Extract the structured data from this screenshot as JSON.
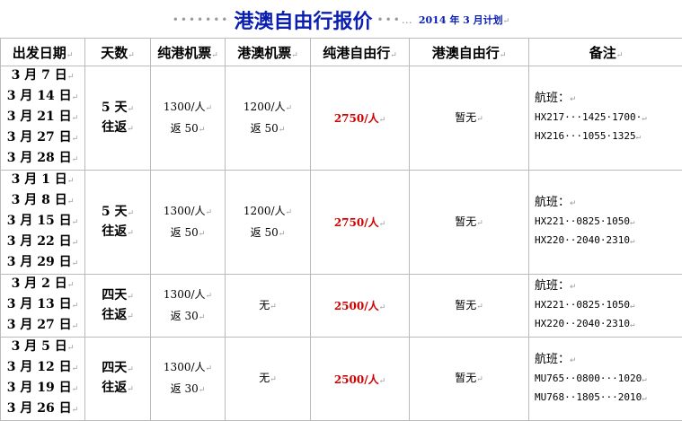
{
  "title": {
    "dots_left": "•••••••",
    "text": "港澳自由行报价",
    "dots_right": "•••…",
    "subtitle": "2014 年 3 月计划"
  },
  "headers": [
    "出发日期",
    "天数",
    "纯港机票",
    "港澳机票",
    "纯港自由行",
    "港澳自由行",
    "备注"
  ],
  "rows": [
    {
      "dates": [
        "3 月 7 日",
        "3 月 14 日",
        "3 月 21 日",
        "3 月 27 日",
        "3 月 28 日"
      ],
      "days": [
        "5 天",
        "往返"
      ],
      "hk_ticket": [
        "1300/人",
        "返 50"
      ],
      "hkmo_ticket": [
        "1200/人",
        "返 50"
      ],
      "hk_free": "2750/人",
      "hkmo_free": "暂无",
      "note_label": "航班：",
      "flights": [
        "HX217···1425·1700·",
        "HX216···1055·1325"
      ]
    },
    {
      "dates": [
        "3 月 1 日",
        "3 月 8 日",
        "3 月 15 日",
        "3 月 22 日",
        "3 月 29 日"
      ],
      "days": [
        "5 天",
        "往返"
      ],
      "hk_ticket": [
        "1300/人",
        "返 50"
      ],
      "hkmo_ticket": [
        "1200/人",
        "返 50"
      ],
      "hk_free": "2750/人",
      "hkmo_free": "暂无",
      "note_label": "航班：",
      "flights": [
        "HX221··0825·1050",
        "HX220··2040·2310"
      ]
    },
    {
      "dates": [
        "3 月 2 日",
        "3 月 13 日",
        "3 月 27 日"
      ],
      "days": [
        "四天",
        "往返"
      ],
      "hk_ticket": [
        "1300/人",
        "返 30"
      ],
      "hkmo_ticket": [
        "无"
      ],
      "hk_free": "2500/人",
      "hkmo_free": "暂无",
      "note_label": "航班：",
      "flights": [
        "HX221··0825·1050",
        "HX220··2040·2310"
      ]
    },
    {
      "dates": [
        "3 月 5 日",
        "3 月 12 日",
        "3 月 19 日",
        "3 月 26 日"
      ],
      "days": [
        "四天",
        "往返"
      ],
      "hk_ticket": [
        "1300/人",
        "返 30"
      ],
      "hkmo_ticket": [
        "无"
      ],
      "hk_free": "2500/人",
      "hkmo_free": "暂无",
      "note_label": "航班：",
      "flights": [
        "MU765··0800···1020",
        "MU768··1805···2010"
      ]
    }
  ],
  "colors": {
    "title": "#0a1fb0",
    "price_highlight": "#d00000",
    "border": "#bbbbbb"
  }
}
